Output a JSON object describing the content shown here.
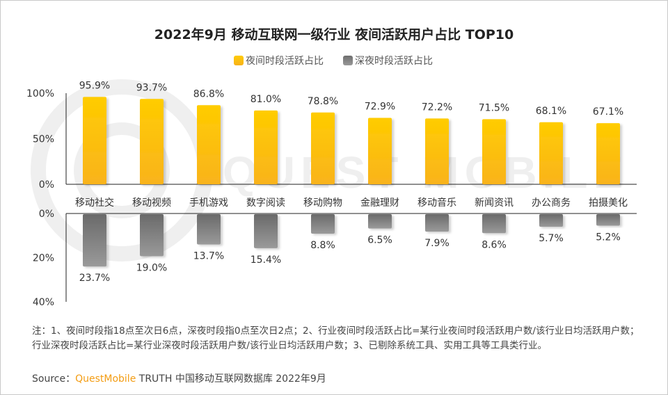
{
  "chart_data": {
    "type": "bar",
    "title": "2022年9月 移动互联网一级行业 夜间活跃用户占比 TOP10",
    "categories": [
      "移动社交",
      "移动视频",
      "手机游戏",
      "数字阅读",
      "移动购物",
      "金融理财",
      "移动音乐",
      "新闻资讯",
      "办公商务",
      "拍摄美化"
    ],
    "series": [
      {
        "name": "夜间时段活跃占比",
        "color": "#FFC107",
        "values": [
          95.9,
          93.7,
          86.8,
          81.0,
          78.8,
          72.9,
          72.2,
          71.5,
          68.1,
          67.1
        ],
        "labels": [
          "95.9%",
          "93.7%",
          "86.8%",
          "81.0%",
          "78.8%",
          "72.9%",
          "72.2%",
          "71.5%",
          "68.1%",
          "67.1%"
        ]
      },
      {
        "name": "深夜时段活跃占比",
        "color": "#7a7a7a",
        "values": [
          23.7,
          19.0,
          13.7,
          15.4,
          8.8,
          6.5,
          7.9,
          8.6,
          5.7,
          5.2
        ],
        "labels": [
          "23.7%",
          "19.0%",
          "13.7%",
          "15.4%",
          "8.8%",
          "6.5%",
          "7.9%",
          "8.6%",
          "5.7%",
          "5.2%"
        ]
      }
    ],
    "upper_axis": {
      "ylim": [
        0,
        100
      ],
      "ticks": [
        "0%",
        "50%",
        "100%"
      ]
    },
    "lower_axis": {
      "ylim": [
        0,
        40
      ],
      "ticks": [
        "0%",
        "20%",
        "40%"
      ]
    },
    "legend": "top-center"
  },
  "note": "注：1、夜间时段指18点至次日6点，深夜时段指0点至次日2点；2、行业夜间时段活跃占比=某行业夜间时段活跃用户数/该行业日均活跃用户数；行业深夜时段活跃占比=某行业深夜时段活跃用户数/该行业日均活跃用户数；3、已剔除系统工具、实用工具等工具类行业。",
  "source": {
    "prefix": "Source：",
    "brand": "QuestMobile",
    "rest": " TRUTH 中国移动互联网数据库 2022年9月"
  },
  "watermark": "QUEST MOBILE"
}
